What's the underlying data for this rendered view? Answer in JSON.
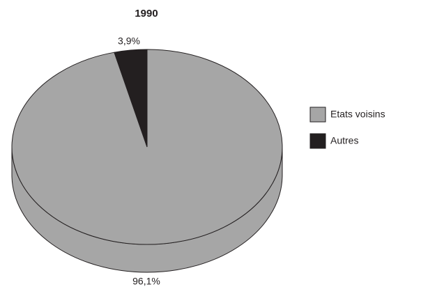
{
  "chart_data": {
    "type": "pie",
    "title": "1990",
    "categories": [
      "Etats voisins",
      "Autres"
    ],
    "values": [
      96.1,
      3.9
    ],
    "value_labels": [
      "96,1%",
      "3,9%"
    ],
    "colors": [
      "#a6a6a6",
      "#231f20"
    ],
    "legend": "right"
  }
}
